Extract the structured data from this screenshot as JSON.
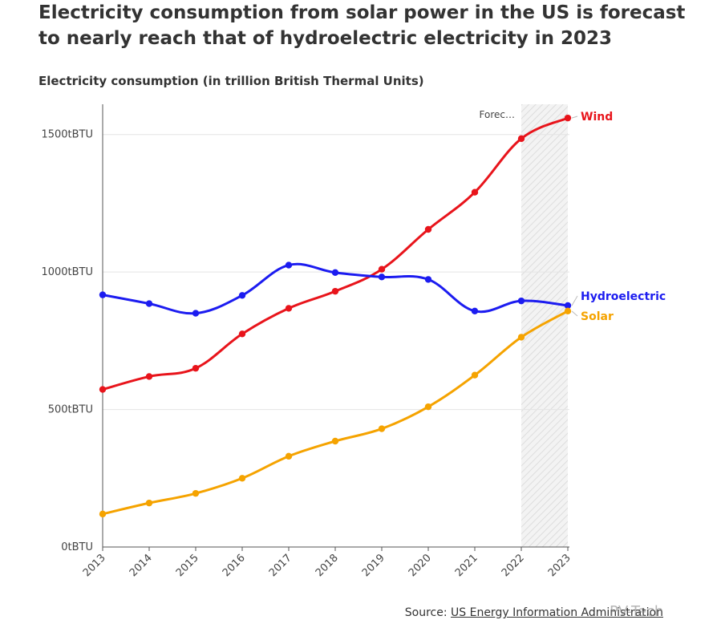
{
  "header": {
    "title": "Electricity consumption from solar power in the US is forecast to nearly reach that of hydroelectric electricity in 2023",
    "subtitle": "Electricity consumption (in trillion British Thermal Units)"
  },
  "footer": {
    "source_prefix": "Source: ",
    "source_link": "US Energy Information Administration",
    "watermark": "PV-Tech"
  },
  "chart_data": {
    "type": "line",
    "x": [
      "2013",
      "2014",
      "2015",
      "2016",
      "2017",
      "2018",
      "2019",
      "2020",
      "2021",
      "2022",
      "2023"
    ],
    "y_ticks": [
      {
        "value": 0,
        "label": "0tBTU"
      },
      {
        "value": 500,
        "label": "500tBTU"
      },
      {
        "value": 1000,
        "label": "1000tBTU"
      },
      {
        "value": 1500,
        "label": "1500tBTU"
      }
    ],
    "ylim": [
      0,
      1610
    ],
    "grid": true,
    "forecast": {
      "label": "Forec…",
      "from": "2022",
      "to": "2023"
    },
    "series": [
      {
        "name": "Wind",
        "color": "#e8141b",
        "values": [
          573,
          620,
          650,
          775,
          868,
          930,
          1010,
          1155,
          1290,
          1485,
          1560
        ]
      },
      {
        "name": "Hydroelectric",
        "color": "#1c1cf0",
        "values": [
          917,
          885,
          850,
          915,
          1025,
          998,
          982,
          973,
          858,
          895,
          878
        ]
      },
      {
        "name": "Solar",
        "color": "#f5a300",
        "values": [
          120,
          160,
          195,
          250,
          330,
          385,
          430,
          510,
          625,
          763,
          858
        ]
      }
    ]
  }
}
